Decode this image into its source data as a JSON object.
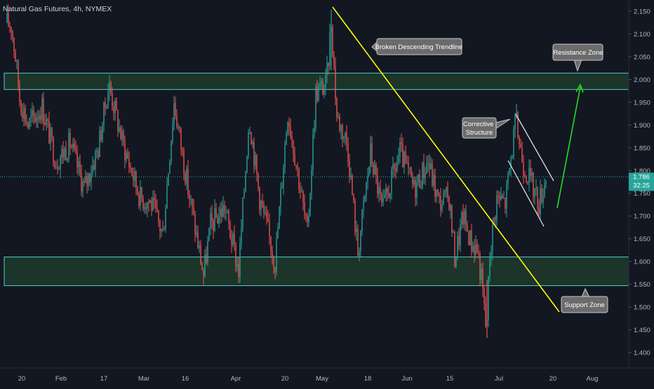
{
  "chart_data": {
    "type": "candlestick",
    "title": "Natural Gas Futures, 4h, NYMEX",
    "y_axis": {
      "ticks": [
        "2.150",
        "2.100",
        "2.050",
        "2.000",
        "1.950",
        "1.900",
        "1.850",
        "1.800",
        "1.750",
        "1.700",
        "1.650",
        "1.600",
        "1.550",
        "1.500",
        "1.450",
        "1.400"
      ],
      "range": [
        1.395,
        2.17
      ]
    },
    "x_axis": {
      "ticks": [
        "20",
        "Feb",
        "17",
        "Mar",
        "16",
        "Apr",
        "20",
        "May",
        "18",
        "Jun",
        "15",
        "Jul",
        "20",
        "Aug"
      ]
    },
    "current_price": "1.786",
    "countdown": "32:25",
    "zones": [
      {
        "name": "Resistance Zone",
        "from": 1.978,
        "to": 2.014
      },
      {
        "name": "Support Zone",
        "from": 1.547,
        "to": 1.61
      }
    ],
    "annotations": [
      {
        "text": "Broken Descending Trendline"
      },
      {
        "text": "Resistance Zone"
      },
      {
        "text": "Corrective\nStructure"
      },
      {
        "text": "Support Zone"
      }
    ],
    "colors": {
      "background": "#131722",
      "up_candle": "#26a69a",
      "down_candle": "#ef5350",
      "zone_fill": "#1e3a2c",
      "zone_border": "#4dd0c4",
      "trendline": "#ffff00",
      "projection_arrow": "#22dd22",
      "channel_lines": "#e0e0e0",
      "price_badge": "#26a69a"
    }
  }
}
